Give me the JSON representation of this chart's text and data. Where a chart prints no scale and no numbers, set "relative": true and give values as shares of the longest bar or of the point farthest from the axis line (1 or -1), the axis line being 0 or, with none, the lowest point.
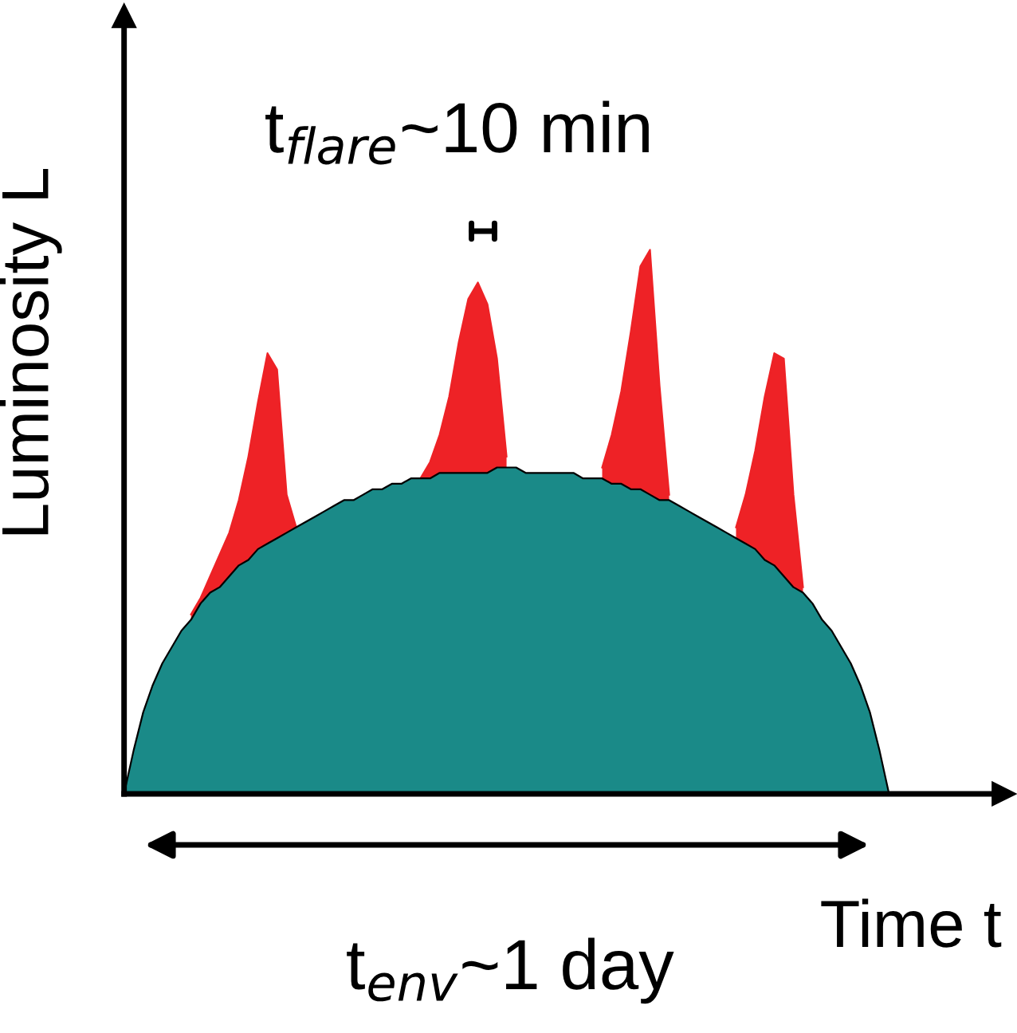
{
  "chart_data": {
    "type": "area",
    "relative": true,
    "xlabel": "Time t",
    "ylabel": "Luminosity L",
    "grid": false,
    "legend": false,
    "categories": [
      null,
      null,
      null,
      null,
      null,
      null,
      null,
      null,
      null,
      null,
      null,
      null,
      null,
      null,
      null,
      null,
      null,
      null,
      null,
      null,
      null,
      null,
      null,
      null,
      null,
      null,
      null,
      null,
      null,
      null,
      null,
      null,
      null,
      null,
      null,
      null,
      null,
      null,
      null,
      null,
      null,
      null,
      null,
      null,
      null,
      null,
      null,
      null,
      null,
      null,
      null,
      null,
      null,
      null,
      null,
      null,
      null,
      null,
      null,
      null,
      null,
      null,
      null,
      null,
      null,
      null,
      null,
      null,
      null,
      null,
      null,
      null,
      null,
      null,
      null,
      null,
      null,
      null,
      null,
      null,
      null
    ],
    "series": [
      {
        "color": "#ee2226",
        "values": [
          null,
          null,
          null,
          null,
          null,
          null,
          null,
          0.33,
          0.36,
          0.4,
          0.44,
          0.48,
          0.54,
          0.62,
          0.72,
          0.81,
          0.78,
          0.55,
          0.49,
          null,
          null,
          null,
          null,
          null,
          null,
          null,
          null,
          null,
          null,
          null,
          null,
          0.58,
          0.61,
          0.66,
          0.73,
          0.83,
          0.91,
          0.94,
          0.9,
          0.8,
          0.62,
          null,
          null,
          null,
          null,
          null,
          null,
          null,
          null,
          null,
          0.6,
          0.66,
          0.74,
          0.85,
          0.97,
          1,
          0.75,
          0.55,
          null,
          null,
          null,
          null,
          null,
          null,
          0.49,
          0.55,
          0.63,
          0.73,
          0.81,
          0.8,
          0.55,
          0.38,
          null,
          null,
          null,
          null,
          null,
          null,
          null,
          null,
          null
        ]
      },
      {
        "color": "#1a8a88",
        "values": [
          0,
          0.08,
          0.15,
          0.2,
          0.24,
          0.27,
          0.3,
          0.32,
          0.35,
          0.37,
          0.38,
          0.4,
          0.42,
          0.43,
          0.45,
          0.46,
          0.47,
          0.48,
          0.49,
          0.5,
          0.51,
          0.52,
          0.53,
          0.54,
          0.54,
          0.55,
          0.56,
          0.56,
          0.57,
          0.57,
          0.58,
          0.58,
          0.58,
          0.59,
          0.59,
          0.59,
          0.59,
          0.59,
          0.59,
          0.6,
          0.6,
          0.6,
          0.59,
          0.59,
          0.59,
          0.59,
          0.59,
          0.59,
          0.58,
          0.58,
          0.58,
          0.57,
          0.57,
          0.56,
          0.56,
          0.55,
          0.54,
          0.54,
          0.53,
          0.52,
          0.51,
          0.5,
          0.49,
          0.48,
          0.47,
          0.46,
          0.45,
          0.43,
          0.42,
          0.4,
          0.38,
          0.37,
          0.35,
          0.32,
          0.3,
          0.27,
          0.24,
          0.2,
          0.15,
          0.08,
          0
        ]
      }
    ],
    "annotations": [
      "t$_{flare}$~10 min",
      "t$_{env}$~1 day"
    ]
  }
}
